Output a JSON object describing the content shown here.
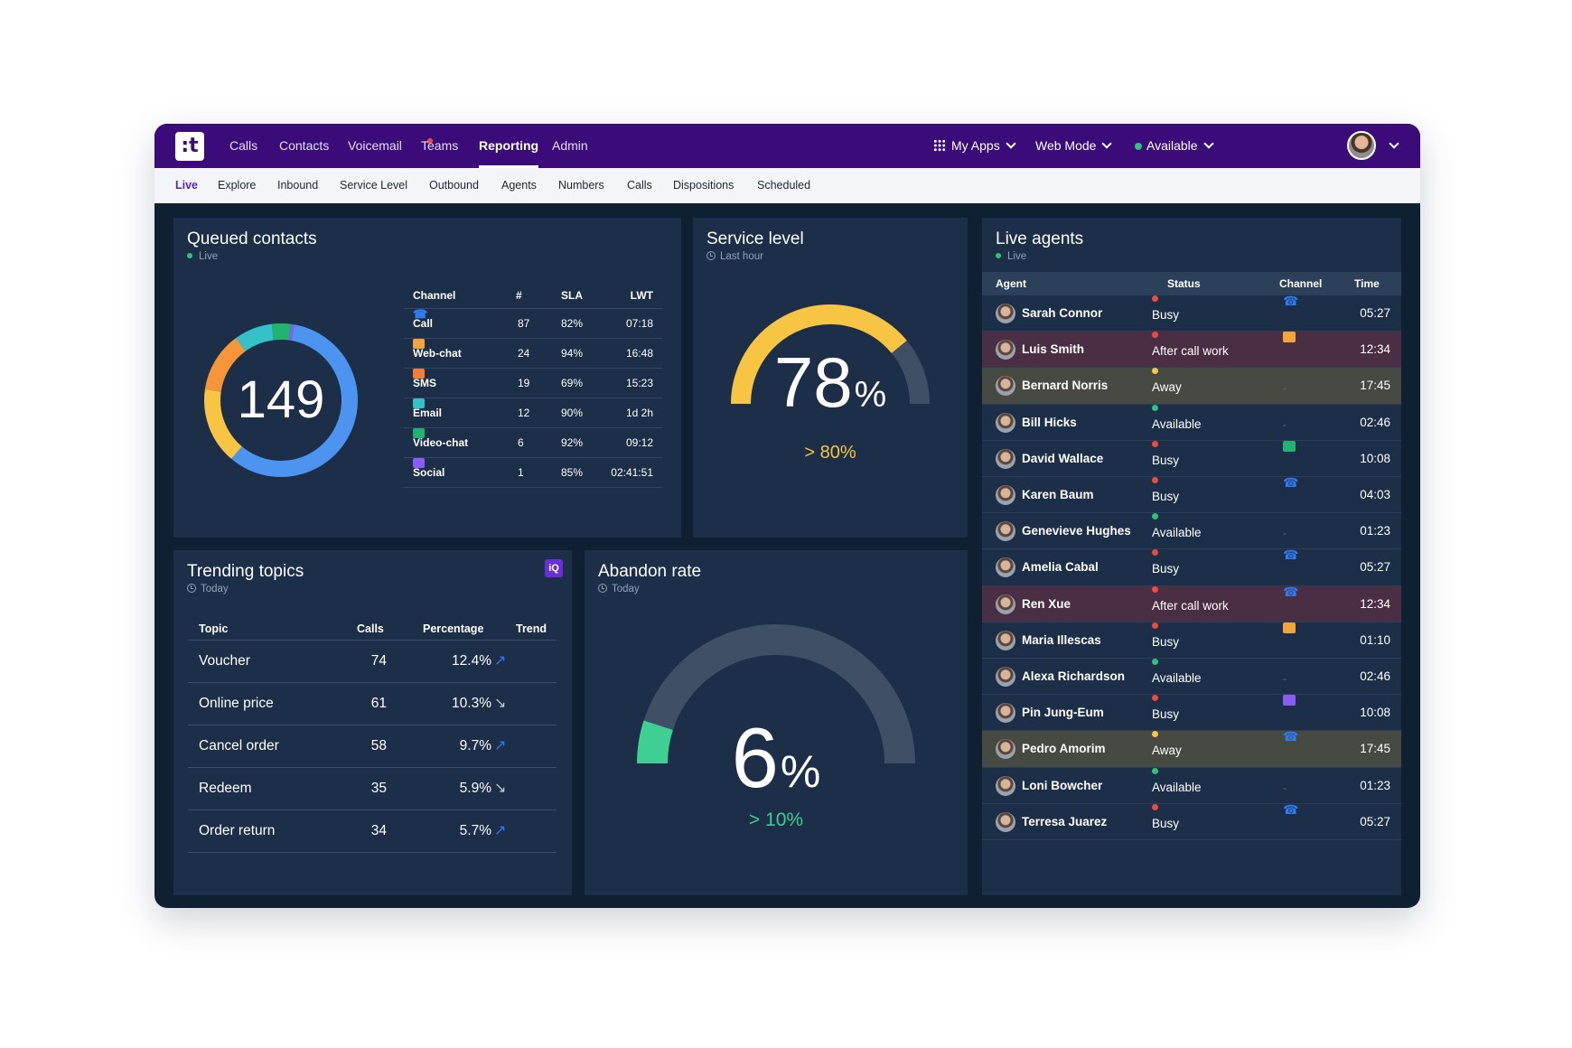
{
  "nav": {
    "logo": ":t",
    "items": [
      "Calls",
      "Contacts",
      "Voicemail",
      "Teams",
      "Reporting",
      "Admin"
    ],
    "active": "Reporting",
    "my_apps": "My Apps",
    "web_mode": "Web Mode",
    "status": "Available"
  },
  "subnav": {
    "items": [
      "Live",
      "Explore",
      "Inbound",
      "Service Level",
      "Outbound",
      "Agents",
      "Numbers",
      "Calls",
      "Dispositions",
      "Scheduled"
    ],
    "active": "Live"
  },
  "queued": {
    "title": "Queued contacts",
    "subtitle": "Live",
    "total": "149",
    "headers": [
      "Channel",
      "#",
      "SLA",
      "LWT"
    ],
    "rows": [
      {
        "channel": "Call",
        "count": "87",
        "sla": "82%",
        "lwt": "07:18",
        "icon": "phone-icon",
        "color": "#2f7bf0"
      },
      {
        "channel": "Web-chat",
        "count": "24",
        "sla": "94%",
        "lwt": "16:48",
        "icon": "chat-icon",
        "color": "#f2a53a"
      },
      {
        "channel": "SMS",
        "count": "19",
        "sla": "69%",
        "lwt": "15:23",
        "icon": "sms-icon",
        "color": "#f37e3a"
      },
      {
        "channel": "Email",
        "count": "12",
        "sla": "90%",
        "lwt": "1d 2h",
        "icon": "email-icon",
        "color": "#36c1c8"
      },
      {
        "channel": "Video-chat",
        "count": "6",
        "sla": "92%",
        "lwt": "09:12",
        "icon": "video-icon",
        "color": "#23b26f"
      },
      {
        "channel": "Social",
        "count": "1",
        "sla": "85%",
        "lwt": "02:41:51",
        "icon": "social-icon",
        "color": "#8b5cf6"
      }
    ]
  },
  "service_level": {
    "title": "Service level",
    "subtitle": "Last hour",
    "value": "78",
    "unit": "%",
    "target": "> 80%",
    "fraction": 0.78,
    "color": "#f7c543"
  },
  "trending": {
    "title": "Trending topics",
    "subtitle": "Today",
    "badge": "iQ",
    "headers": [
      "Topic",
      "Calls",
      "Percentage",
      "Trend"
    ],
    "rows": [
      {
        "topic": "Voucher",
        "calls": "74",
        "pct": "12.4%",
        "trend": "up"
      },
      {
        "topic": "Online price",
        "calls": "61",
        "pct": "10.3%",
        "trend": "down"
      },
      {
        "topic": "Cancel order",
        "calls": "58",
        "pct": "9.7%",
        "trend": "up"
      },
      {
        "topic": "Redeem",
        "calls": "35",
        "pct": "5.9%",
        "trend": "down"
      },
      {
        "topic": "Order return",
        "calls": "34",
        "pct": "5.7%",
        "trend": "up"
      }
    ]
  },
  "abandon": {
    "title": "Abandon rate",
    "subtitle": "Today",
    "value": "6",
    "unit": "%",
    "target": "> 10%",
    "fraction": 0.06,
    "color": "#3fcf93"
  },
  "agents": {
    "title": "Live agents",
    "subtitle": "Live",
    "headers": [
      "Agent",
      "Status",
      "Channel",
      "Time"
    ],
    "rows": [
      {
        "name": "Sarah Connor",
        "status": "Busy",
        "channel": "phone",
        "time": "05:27"
      },
      {
        "name": "Luis Smith",
        "status": "After call work",
        "channel": "chat",
        "time": "12:34"
      },
      {
        "name": "Bernard Norris",
        "status": "Away",
        "channel": "none",
        "time": "17:45"
      },
      {
        "name": "Bill Hicks",
        "status": "Available",
        "channel": "none",
        "time": "02:46"
      },
      {
        "name": "David Wallace",
        "status": "Busy",
        "channel": "video",
        "time": "10:08"
      },
      {
        "name": "Karen Baum",
        "status": "Busy",
        "channel": "phone",
        "time": "04:03"
      },
      {
        "name": "Genevieve Hughes",
        "status": "Available",
        "channel": "none",
        "time": "01:23"
      },
      {
        "name": "Amelia Cabal",
        "status": "Busy",
        "channel": "phone",
        "time": "05:27"
      },
      {
        "name": "Ren Xue",
        "status": "After call work",
        "channel": "phone",
        "time": "12:34"
      },
      {
        "name": "Maria Illescas",
        "status": "Busy",
        "channel": "chat",
        "time": "01:10"
      },
      {
        "name": "Alexa Richardson",
        "status": "Available",
        "channel": "none",
        "time": "02:46"
      },
      {
        "name": "Pin Jung-Eum",
        "status": "Busy",
        "channel": "social",
        "time": "10:08"
      },
      {
        "name": "Pedro Amorim",
        "status": "Away",
        "channel": "phone",
        "time": "17:45"
      },
      {
        "name": "Loni Bowcher",
        "status": "Available",
        "channel": "none",
        "time": "01:23"
      },
      {
        "name": "Terresa Juarez",
        "status": "Busy",
        "channel": "phone",
        "time": "05:27"
      }
    ]
  },
  "colors": {
    "busy": "#ef4b3c",
    "after_call_work": "#ef4b3c",
    "away": "#f5c64a",
    "available": "#2ec37c",
    "trend": "#2f7bf0"
  },
  "chart_data": {
    "type": "pie",
    "title": "Queued contacts",
    "categories": [
      "Call",
      "Web-chat",
      "SMS",
      "Email",
      "Video-chat",
      "Social"
    ],
    "values": [
      87,
      24,
      19,
      12,
      6,
      1
    ],
    "colors": [
      "#4c94f0",
      "#f7c543",
      "#f7953a",
      "#36c1c8",
      "#23b26f",
      "#8b5cf6"
    ]
  }
}
